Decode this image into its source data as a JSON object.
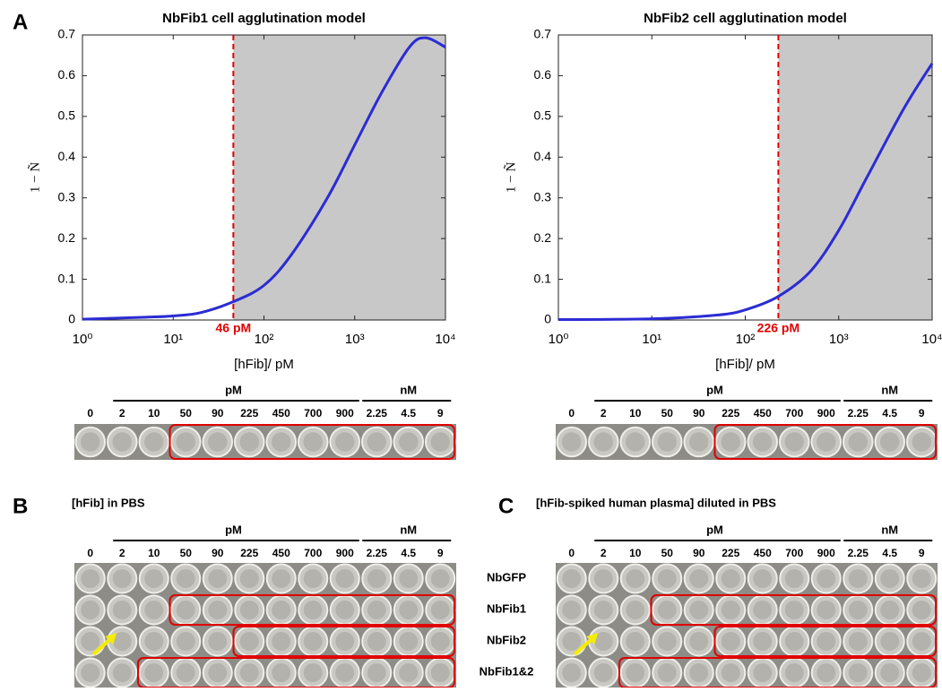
{
  "chart_data": [
    {
      "type": "line",
      "title": "NbFib1 cell agglutination model",
      "x_label": "[hFib]/ pM",
      "y_label": "1 − Ñ",
      "x_scale": "log",
      "xlim": [
        1,
        10000
      ],
      "xticks": [
        {
          "value": 1,
          "label": "10⁰"
        },
        {
          "value": 10,
          "label": "10¹"
        },
        {
          "value": 100,
          "label": "10²"
        },
        {
          "value": 1000,
          "label": "10³"
        },
        {
          "value": 10000,
          "label": "10⁴"
        }
      ],
      "ylim": [
        0,
        0.7
      ],
      "yticks": [
        0,
        0.1,
        0.2,
        0.3,
        0.4,
        0.5,
        0.6,
        0.7
      ],
      "x": [
        1,
        2,
        5,
        10,
        20,
        46,
        100,
        200,
        500,
        1000,
        2000,
        4000,
        6000,
        10000
      ],
      "values": [
        0.002,
        0.004,
        0.007,
        0.01,
        0.018,
        0.045,
        0.085,
        0.16,
        0.3,
        0.43,
        0.56,
        0.67,
        0.693,
        0.67
      ],
      "color": "#2b2bd4",
      "threshold": {
        "value": 46,
        "label": "46 pM",
        "color": "#e00000"
      },
      "shade_color": "#c8c8c8"
    },
    {
      "type": "line",
      "title": "NbFib2 cell agglutination model",
      "x_label": "[hFib]/ pM",
      "y_label": "1 − Ñ",
      "x_scale": "log",
      "xlim": [
        1,
        10000
      ],
      "xticks": [
        {
          "value": 1,
          "label": "10⁰"
        },
        {
          "value": 10,
          "label": "10¹"
        },
        {
          "value": 100,
          "label": "10²"
        },
        {
          "value": 1000,
          "label": "10³"
        },
        {
          "value": 10000,
          "label": "10⁴"
        }
      ],
      "ylim": [
        0,
        0.7
      ],
      "yticks": [
        0,
        0.1,
        0.2,
        0.3,
        0.4,
        0.5,
        0.6,
        0.7
      ],
      "x": [
        1,
        10,
        50,
        100,
        226,
        500,
        1000,
        2000,
        5000,
        10000
      ],
      "values": [
        0.001,
        0.003,
        0.012,
        0.025,
        0.058,
        0.12,
        0.22,
        0.35,
        0.52,
        0.63
      ],
      "color": "#2b2bd4",
      "threshold": {
        "value": 226,
        "label": "226 pM",
        "color": "#e00000"
      },
      "shade_color": "#c8c8c8"
    }
  ],
  "panel_labels": [
    "A",
    "B",
    "C"
  ],
  "wells": {
    "units": [
      "pM",
      "nM"
    ],
    "concentrations": [
      0,
      2,
      10,
      50,
      90,
      225,
      450,
      700,
      900,
      2.25,
      4.5,
      9
    ]
  },
  "panel_b": {
    "title": "[hFib] in PBS"
  },
  "panel_c": {
    "title": "[hFib-spiked human plasma] diluted in PBS"
  },
  "rows": [
    "NbGFP",
    "NbFib1",
    "NbFib2",
    "NbFib1&2"
  ]
}
